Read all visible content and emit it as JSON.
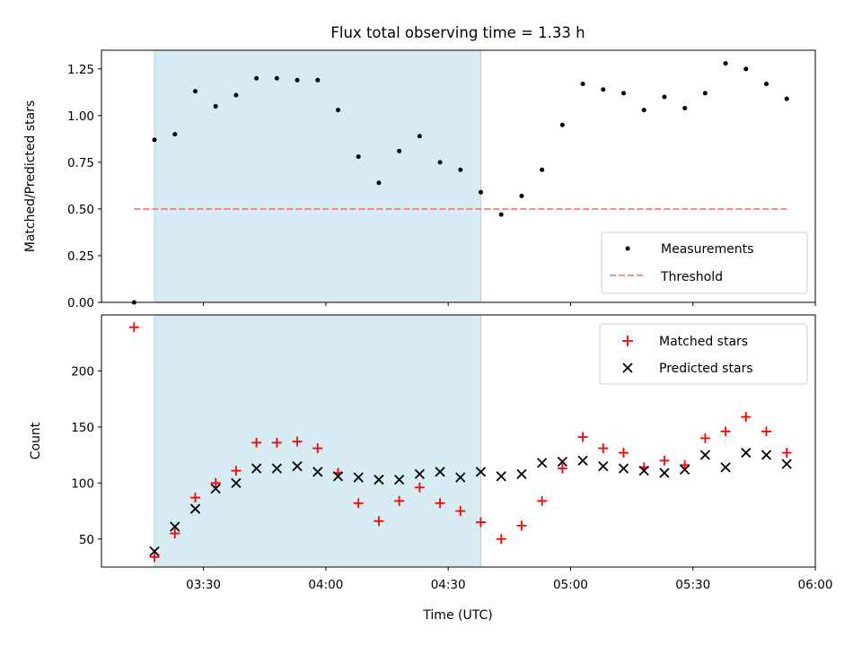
{
  "chart_data": [
    {
      "type": "scatter",
      "panel": "top",
      "title": "Flux total observing time = 1.33 h",
      "ylabel": "Matched/Predicted stars",
      "xlabel": "",
      "xlim": [
        "03:05",
        "06:00"
      ],
      "ylim": [
        0,
        1.35
      ],
      "yticks": [
        0.0,
        0.25,
        0.5,
        0.75,
        1.0,
        1.25
      ],
      "ytick_labels": [
        "0.00",
        "0.25",
        "0.50",
        "0.75",
        "1.00",
        "1.25"
      ],
      "xticks": [
        "03:30",
        "04:00",
        "04:30",
        "05:00",
        "05:30",
        "06:00"
      ],
      "show_xtick_labels": false,
      "grid": false,
      "legend_position": "lower-right",
      "shaded_region": {
        "start": "03:18",
        "end": "04:38",
        "color": "#add8e6"
      },
      "series": [
        {
          "name": "Measurements",
          "marker": "dot",
          "color": "#000000",
          "x": [
            "03:13",
            "03:18",
            "03:23",
            "03:28",
            "03:33",
            "03:38",
            "03:43",
            "03:48",
            "03:53",
            "03:58",
            "04:03",
            "04:08",
            "04:13",
            "04:18",
            "04:23",
            "04:28",
            "04:33",
            "04:38",
            "04:43",
            "04:48",
            "04:53",
            "04:58",
            "05:03",
            "05:08",
            "05:13",
            "05:18",
            "05:23",
            "05:28",
            "05:33",
            "05:38",
            "05:43",
            "05:48",
            "05:53"
          ],
          "y": [
            0.0,
            0.87,
            0.9,
            1.13,
            1.05,
            1.11,
            1.2,
            1.2,
            1.19,
            1.19,
            1.03,
            0.78,
            0.64,
            0.81,
            0.89,
            0.75,
            0.71,
            0.59,
            0.47,
            0.57,
            0.71,
            0.95,
            1.17,
            1.14,
            1.12,
            1.03,
            1.1,
            1.04,
            1.12,
            1.28,
            1.25,
            1.17,
            1.09
          ]
        }
      ],
      "threshold": {
        "name": "Threshold",
        "value": 0.5,
        "x_start": "03:13",
        "x_end": "05:53",
        "color": "#ff7f7f"
      }
    },
    {
      "type": "scatter",
      "panel": "bottom",
      "title": "",
      "ylabel": "Count",
      "xlabel": "Time (UTC)",
      "xlim": [
        "03:05",
        "06:00"
      ],
      "ylim": [
        25,
        250
      ],
      "yticks": [
        50,
        100,
        150,
        200
      ],
      "ytick_labels": [
        "50",
        "100",
        "150",
        "200"
      ],
      "xticks": [
        "03:30",
        "04:00",
        "04:30",
        "05:00",
        "05:30",
        "06:00"
      ],
      "xtick_labels": [
        "03:30",
        "04:00",
        "04:30",
        "05:00",
        "05:30",
        "06:00"
      ],
      "grid": false,
      "legend_position": "upper-right",
      "shaded_region": {
        "start": "03:18",
        "end": "04:38",
        "color": "#add8e6"
      },
      "series": [
        {
          "name": "Matched stars",
          "marker": "plus",
          "color": "#ff0000",
          "x": [
            "03:13",
            "03:18",
            "03:23",
            "03:28",
            "03:33",
            "03:38",
            "03:43",
            "03:48",
            "03:53",
            "03:58",
            "04:03",
            "04:08",
            "04:13",
            "04:18",
            "04:23",
            "04:28",
            "04:33",
            "04:38",
            "04:43",
            "04:48",
            "04:53",
            "04:58",
            "05:03",
            "05:08",
            "05:13",
            "05:18",
            "05:23",
            "05:28",
            "05:33",
            "05:38",
            "05:43",
            "05:48",
            "05:53"
          ],
          "y": [
            239,
            34,
            55,
            87,
            100,
            111,
            136,
            136,
            137,
            131,
            109,
            82,
            66,
            84,
            96,
            82,
            75,
            65,
            50,
            62,
            84,
            113,
            141,
            131,
            127,
            114,
            120,
            116,
            140,
            146,
            159,
            146,
            127
          ]
        },
        {
          "name": "Predicted stars",
          "marker": "x",
          "color": "#000000",
          "x": [
            "03:18",
            "03:23",
            "03:28",
            "03:33",
            "03:38",
            "03:43",
            "03:48",
            "03:53",
            "03:58",
            "04:03",
            "04:08",
            "04:13",
            "04:18",
            "04:23",
            "04:28",
            "04:33",
            "04:38",
            "04:43",
            "04:48",
            "04:53",
            "04:58",
            "05:03",
            "05:08",
            "05:13",
            "05:18",
            "05:23",
            "05:28",
            "05:33",
            "05:38",
            "05:43",
            "05:48",
            "05:53"
          ],
          "y": [
            39,
            61,
            77,
            95,
            100,
            113,
            113,
            115,
            110,
            106,
            105,
            103,
            103,
            108,
            110,
            105,
            110,
            106,
            108,
            118,
            119,
            120,
            115,
            113,
            111,
            109,
            112,
            125,
            114,
            127,
            125,
            117
          ]
        }
      ]
    }
  ]
}
